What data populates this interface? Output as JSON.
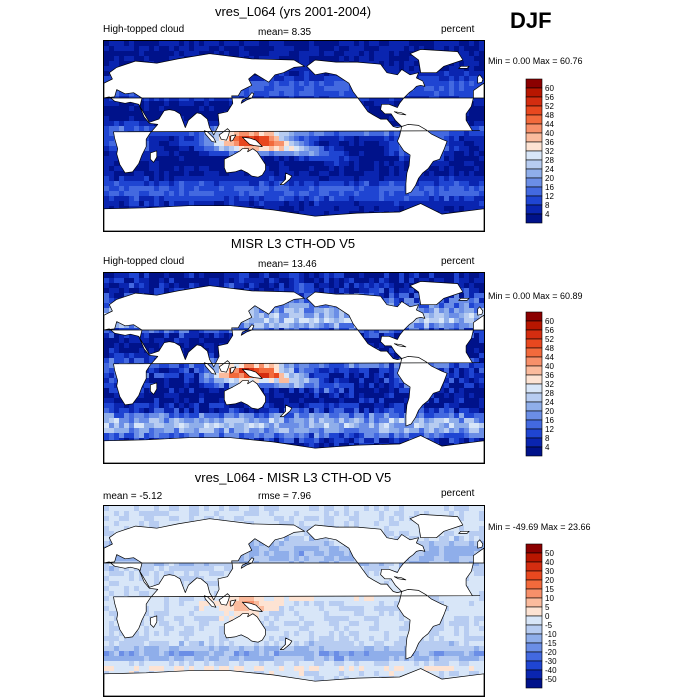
{
  "season": "DJF",
  "panels": [
    {
      "title": "vres_L064 (yrs 2001-2004)",
      "left_label": "High-topped cloud",
      "center_label": "mean=  8.35",
      "right_label": "percent",
      "stats": "Min =   0.00 Max =  60.76",
      "colorbar": {
        "labels": [
          "60",
          "56",
          "52",
          "48",
          "44",
          "40",
          "36",
          "32",
          "28",
          "24",
          "20",
          "16",
          "12",
          "8",
          "4"
        ],
        "colors": [
          "#8b0000",
          "#b81600",
          "#d42d10",
          "#e8481f",
          "#f26a3c",
          "#f7906a",
          "#fbbb9d",
          "#fde3d3",
          "#d8e6f8",
          "#b7ccf1",
          "#8faeea",
          "#6b8ee6",
          "#4369e0",
          "#1f45d2",
          "#0a25b0",
          "#00128a"
        ]
      },
      "palette": "cloud"
    },
    {
      "title": "MISR L3 CTH-OD V5",
      "left_label": "High-topped cloud",
      "center_label": "mean=  13.46",
      "right_label": "percent",
      "stats": "Min =   0.00 Max =  60.89",
      "colorbar": {
        "labels": [
          "60",
          "56",
          "52",
          "48",
          "44",
          "40",
          "36",
          "32",
          "28",
          "24",
          "20",
          "16",
          "12",
          "8",
          "4"
        ],
        "colors": [
          "#8b0000",
          "#b81600",
          "#d42d10",
          "#e8481f",
          "#f26a3c",
          "#f7906a",
          "#fbbb9d",
          "#fde3d3",
          "#d8e6f8",
          "#b7ccf1",
          "#8faeea",
          "#6b8ee6",
          "#4369e0",
          "#1f45d2",
          "#0a25b0",
          "#00128a"
        ]
      },
      "palette": "cloud"
    },
    {
      "title": "vres_L064 - MISR L3 CTH-OD V5",
      "left_label": "mean = -5.12",
      "center_label": "rmse =  7.96",
      "right_label": "percent",
      "stats": "Min = -49.69 Max =  23.66",
      "colorbar": {
        "labels": [
          "50",
          "40",
          "30",
          "20",
          "15",
          "10",
          "5",
          "0",
          "-5",
          "-10",
          "-15",
          "-20",
          "-30",
          "-40",
          "-50"
        ],
        "colors": [
          "#8b0000",
          "#b81600",
          "#d42d10",
          "#e8481f",
          "#f26a3c",
          "#f7906a",
          "#fbbb9d",
          "#fde3d3",
          "#d8e6f8",
          "#b7ccf1",
          "#8faeea",
          "#6b8ee6",
          "#4369e0",
          "#1f45d2",
          "#0a25b0",
          "#00128a"
        ]
      },
      "palette": "diff"
    }
  ]
}
